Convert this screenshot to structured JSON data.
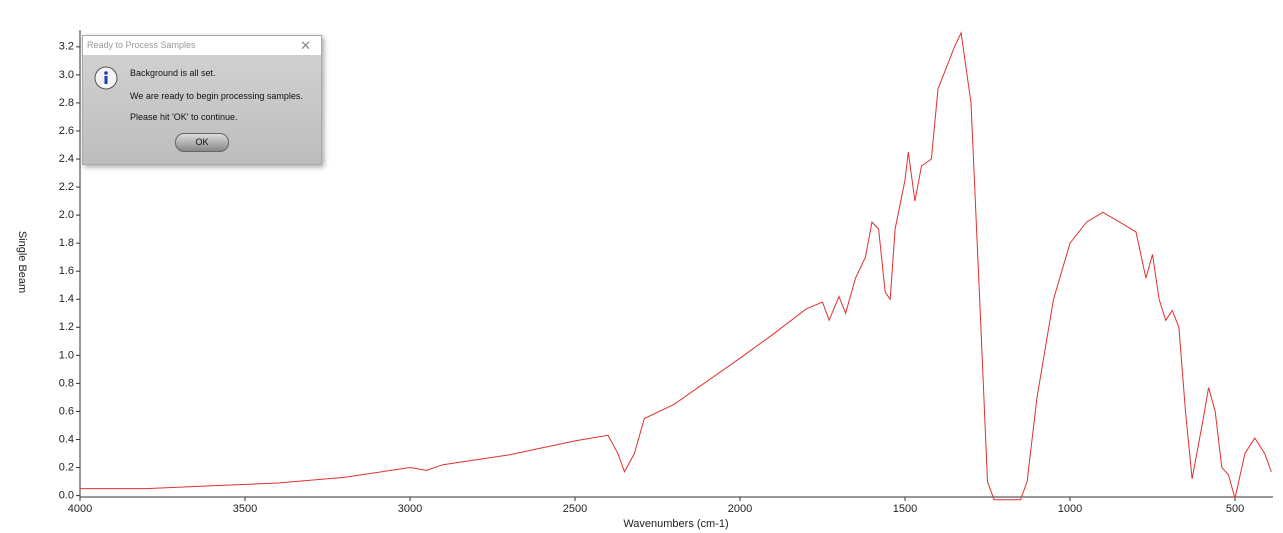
{
  "chart_data": {
    "type": "line",
    "x_label": "Wavenumbers (cm-1)",
    "y_label": "Single Beam",
    "x": [
      4000,
      3800,
      3600,
      3400,
      3200,
      3000,
      2950,
      2900,
      2700,
      2500,
      2400,
      2370,
      2350,
      2320,
      2290,
      2200,
      2000,
      1900,
      1800,
      1750,
      1730,
      1700,
      1680,
      1650,
      1620,
      1600,
      1580,
      1560,
      1545,
      1530,
      1500,
      1490,
      1470,
      1450,
      1420,
      1400,
      1350,
      1330,
      1300,
      1270,
      1250,
      1230,
      1150,
      1130,
      1100,
      1050,
      1000,
      950,
      900,
      850,
      800,
      770,
      750,
      730,
      710,
      690,
      670,
      650,
      630,
      600,
      580,
      560,
      540,
      520,
      500,
      470,
      440,
      410,
      390
    ],
    "values": [
      0.05,
      0.05,
      0.07,
      0.09,
      0.13,
      0.2,
      0.18,
      0.22,
      0.29,
      0.39,
      0.43,
      0.3,
      0.17,
      0.3,
      0.55,
      0.65,
      0.98,
      1.15,
      1.33,
      1.38,
      1.25,
      1.42,
      1.3,
      1.55,
      1.7,
      1.95,
      1.9,
      1.45,
      1.4,
      1.9,
      2.25,
      2.45,
      2.1,
      2.35,
      2.4,
      2.9,
      3.2,
      3.3,
      2.8,
      1.2,
      0.1,
      -0.03,
      -0.03,
      0.1,
      0.7,
      1.4,
      1.8,
      1.95,
      2.02,
      1.95,
      1.88,
      1.55,
      1.72,
      1.4,
      1.25,
      1.32,
      1.2,
      0.6,
      0.12,
      0.5,
      0.77,
      0.6,
      0.2,
      0.15,
      -0.02,
      0.3,
      0.41,
      0.3,
      0.17
    ],
    "color": "#e03030",
    "xlim": [
      4000,
      385
    ],
    "xticks": [
      4000,
      3500,
      3000,
      2500,
      2000,
      1500,
      1000,
      500
    ],
    "ylim": [
      -0.01,
      3.32
    ],
    "yticks": [
      {
        "value": 0,
        "label": "0.0"
      },
      0.2,
      0.4,
      0.6,
      0.8,
      {
        "value": 1,
        "label": "1.0"
      },
      1.2,
      1.4,
      1.6,
      1.8,
      {
        "value": 2,
        "label": "2.0"
      },
      2.2,
      2.4,
      2.6,
      2.8,
      {
        "value": 3,
        "label": "3.0"
      },
      3.2
    ]
  },
  "dialog": {
    "title": "Ready to Process Samples",
    "lines": [
      "Background is all set.",
      "We are ready to begin processing samples.",
      "Please hit 'OK' to continue."
    ],
    "button": "OK"
  }
}
